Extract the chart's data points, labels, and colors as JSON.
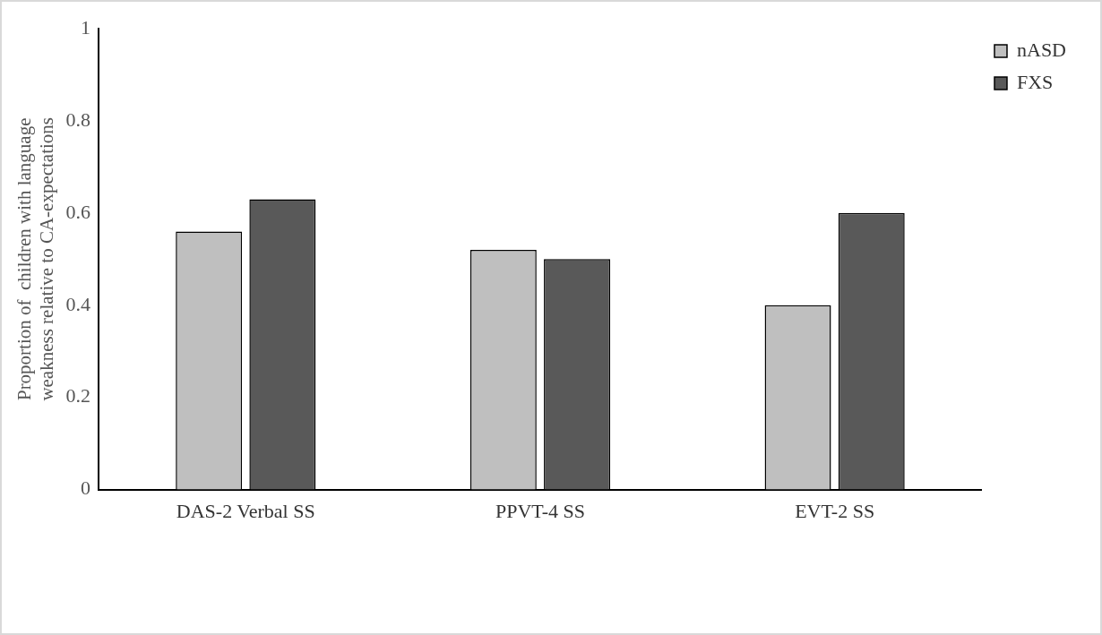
{
  "chart_data": {
    "type": "bar",
    "ylabel": "Proportion of  children with language weakness relative to CA-expectations",
    "categories": [
      "DAS-2 Verbal SS",
      "PPVT-4 SS",
      "EVT-2 SS"
    ],
    "series": [
      {
        "name": "nASD",
        "color": "#bfbfbf",
        "values": [
          0.56,
          0.52,
          0.4
        ]
      },
      {
        "name": "FXS",
        "color": "#595959",
        "values": [
          0.63,
          0.5,
          0.6
        ]
      }
    ],
    "ylim": [
      0,
      1
    ],
    "yticks": [
      0,
      0.2,
      0.4,
      0.6,
      0.8,
      1
    ],
    "grid": false,
    "legend": "top right"
  }
}
